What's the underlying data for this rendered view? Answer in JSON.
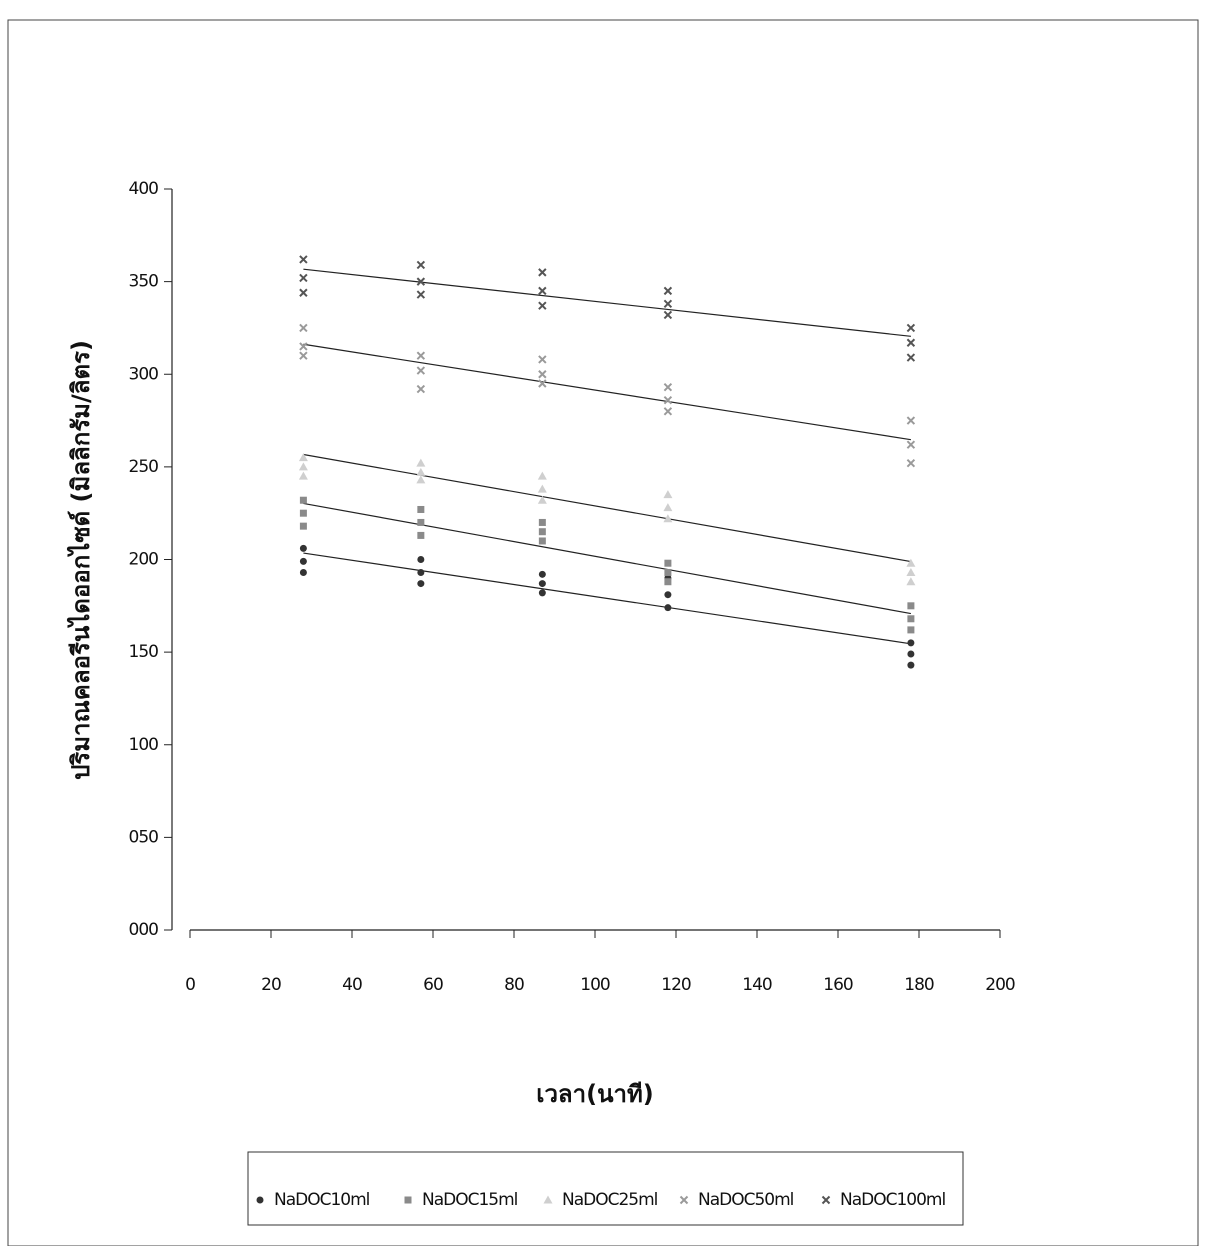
{
  "chart_data": {
    "type": "scatter",
    "y_label": "ปริมาณคลอรีนไดออกไซด์ (มิลลิกรัม/ลิตร)",
    "x_label": "เวลา(นาที)",
    "xlim": [
      0,
      200
    ],
    "xticks": [
      0,
      20,
      40,
      60,
      80,
      100,
      120,
      140,
      160,
      180,
      200
    ],
    "ylim": [
      0,
      400
    ],
    "yticks": [
      {
        "value": 0,
        "label": "000"
      },
      {
        "value": 50,
        "label": "050"
      },
      100,
      150,
      200,
      250,
      300,
      350,
      400
    ],
    "trendline": true,
    "legend": "bottom",
    "series": [
      {
        "name": "NaDOC10ml",
        "color": "#333333",
        "marker": "circle",
        "x": [
          28,
          28,
          28,
          57,
          57,
          57,
          87,
          87,
          87,
          118,
          118,
          118,
          178,
          178,
          178
        ],
        "values": [
          206,
          199,
          193,
          200,
          193,
          187,
          192,
          187,
          182,
          190,
          181,
          174,
          155,
          149,
          143
        ]
      },
      {
        "name": "NaDOC15ml",
        "color": "#8a8a8a",
        "marker": "square",
        "x": [
          28,
          28,
          28,
          57,
          57,
          57,
          87,
          87,
          87,
          118,
          118,
          118,
          178,
          178,
          178
        ],
        "values": [
          232,
          225,
          218,
          227,
          220,
          213,
          220,
          215,
          210,
          198,
          193,
          188,
          175,
          168,
          162
        ]
      },
      {
        "name": "NaDOC25ml",
        "color": "#cfcfcf",
        "marker": "triangle",
        "x": [
          28,
          28,
          28,
          57,
          57,
          57,
          87,
          87,
          87,
          118,
          118,
          118,
          178,
          178,
          178
        ],
        "values": [
          255,
          250,
          245,
          252,
          247,
          243,
          245,
          238,
          232,
          235,
          228,
          222,
          198,
          193,
          188
        ]
      },
      {
        "name": "NaDOC50ml",
        "color": "#9a9a9a",
        "marker": "x",
        "x": [
          28,
          28,
          28,
          57,
          57,
          57,
          87,
          87,
          87,
          118,
          118,
          118,
          178,
          178,
          178
        ],
        "values": [
          325,
          315,
          310,
          310,
          302,
          292,
          308,
          300,
          295,
          293,
          286,
          280,
          275,
          262,
          252
        ]
      },
      {
        "name": "NaDOC100ml",
        "color": "#555555",
        "marker": "x",
        "x": [
          28,
          28,
          28,
          57,
          57,
          57,
          87,
          87,
          87,
          118,
          118,
          118,
          178,
          178,
          178
        ],
        "values": [
          362,
          352,
          344,
          359,
          350,
          343,
          355,
          345,
          337,
          345,
          338,
          332,
          325,
          317,
          309
        ]
      }
    ]
  }
}
